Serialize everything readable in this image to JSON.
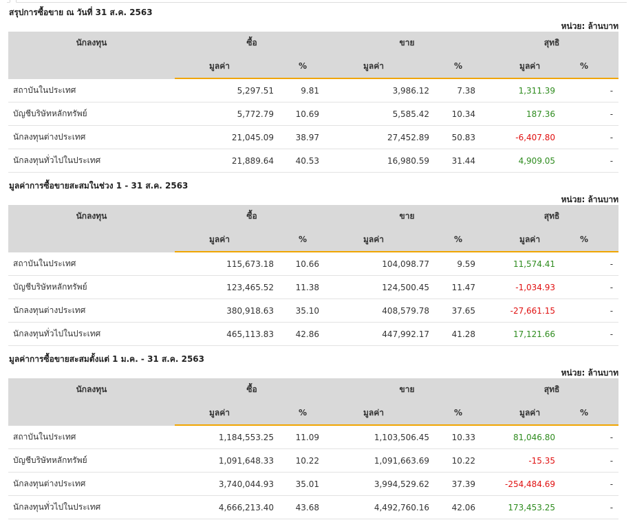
{
  "colors": {
    "positive": "#2e8b1e",
    "negative": "#e01010",
    "header_bg": "#d9d9d9",
    "accent": "#f0a500"
  },
  "headers": {
    "investor": "นักลงทุน",
    "buy": "ซื้อ",
    "sell": "ขาย",
    "net": "สุทธิ",
    "value": "มูลค่า",
    "pct": "%"
  },
  "unit": "หน่วย: ล้านบาท",
  "sections": [
    {
      "title": "สรุปการซื้อขาย ณ วันที่ 31 ส.ค. 2563",
      "rows": [
        {
          "name": "สถาบันในประเทศ",
          "buy": "5,297.51",
          "buy_pct": "9.81",
          "sell": "3,986.12",
          "sell_pct": "7.38",
          "net": "1,311.39",
          "net_sign": "pos",
          "net_pct": "-"
        },
        {
          "name": "บัญชีบริษัทหลักทรัพย์",
          "buy": "5,772.79",
          "buy_pct": "10.69",
          "sell": "5,585.42",
          "sell_pct": "10.34",
          "net": "187.36",
          "net_sign": "pos",
          "net_pct": "-"
        },
        {
          "name": "นักลงทุนต่างประเทศ",
          "buy": "21,045.09",
          "buy_pct": "38.97",
          "sell": "27,452.89",
          "sell_pct": "50.83",
          "net": "-6,407.80",
          "net_sign": "neg",
          "net_pct": "-"
        },
        {
          "name": "นักลงทุนทั่วไปในประเทศ",
          "buy": "21,889.64",
          "buy_pct": "40.53",
          "sell": "16,980.59",
          "sell_pct": "31.44",
          "net": "4,909.05",
          "net_sign": "pos",
          "net_pct": "-"
        }
      ]
    },
    {
      "title": "มูลค่าการซื้อขายสะสมในช่วง 1 - 31 ส.ค. 2563",
      "rows": [
        {
          "name": "สถาบันในประเทศ",
          "buy": "115,673.18",
          "buy_pct": "10.66",
          "sell": "104,098.77",
          "sell_pct": "9.59",
          "net": "11,574.41",
          "net_sign": "pos",
          "net_pct": "-"
        },
        {
          "name": "บัญชีบริษัทหลักทรัพย์",
          "buy": "123,465.52",
          "buy_pct": "11.38",
          "sell": "124,500.45",
          "sell_pct": "11.47",
          "net": "-1,034.93",
          "net_sign": "neg",
          "net_pct": "-"
        },
        {
          "name": "นักลงทุนต่างประเทศ",
          "buy": "380,918.63",
          "buy_pct": "35.10",
          "sell": "408,579.78",
          "sell_pct": "37.65",
          "net": "-27,661.15",
          "net_sign": "neg",
          "net_pct": "-"
        },
        {
          "name": "นักลงทุนทั่วไปในประเทศ",
          "buy": "465,113.83",
          "buy_pct": "42.86",
          "sell": "447,992.17",
          "sell_pct": "41.28",
          "net": "17,121.66",
          "net_sign": "pos",
          "net_pct": "-"
        }
      ]
    },
    {
      "title": "มูลค่าการซื้อขายสะสมตั้งแต่ 1 ม.ค. - 31 ส.ค. 2563",
      "rows": [
        {
          "name": "สถาบันในประเทศ",
          "buy": "1,184,553.25",
          "buy_pct": "11.09",
          "sell": "1,103,506.45",
          "sell_pct": "10.33",
          "net": "81,046.80",
          "net_sign": "pos",
          "net_pct": "-"
        },
        {
          "name": "บัญชีบริษัทหลักทรัพย์",
          "buy": "1,091,648.33",
          "buy_pct": "10.22",
          "sell": "1,091,663.69",
          "sell_pct": "10.22",
          "net": "-15.35",
          "net_sign": "neg",
          "net_pct": "-"
        },
        {
          "name": "นักลงทุนต่างประเทศ",
          "buy": "3,740,044.93",
          "buy_pct": "35.01",
          "sell": "3,994,529.62",
          "sell_pct": "37.39",
          "net": "-254,484.69",
          "net_sign": "neg",
          "net_pct": "-"
        },
        {
          "name": "นักลงทุนทั่วไปในประเทศ",
          "buy": "4,666,213.40",
          "buy_pct": "43.68",
          "sell": "4,492,760.16",
          "sell_pct": "42.06",
          "net": "173,453.25",
          "net_sign": "pos",
          "net_pct": "-"
        }
      ]
    }
  ]
}
